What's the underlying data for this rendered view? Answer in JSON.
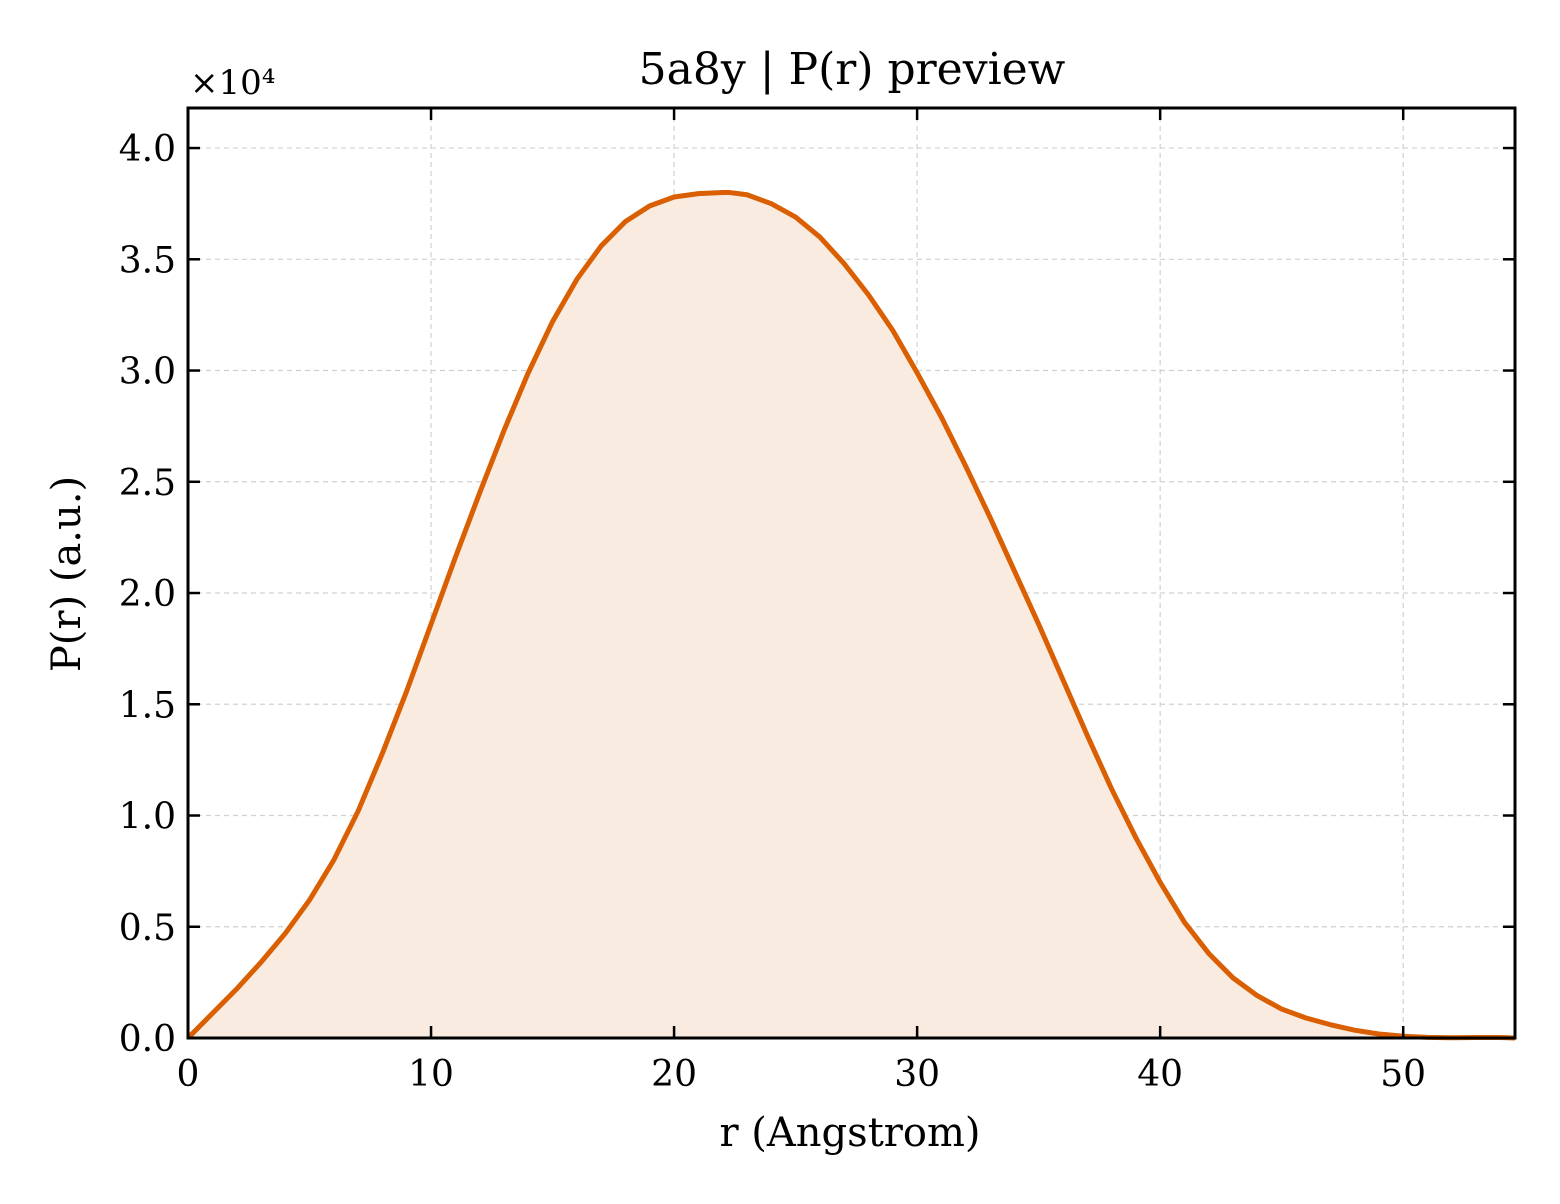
{
  "chart_data": {
    "type": "area",
    "title": "5a8y | P(r) preview",
    "xlabel": "r (Angstrom)",
    "ylabel": "P(r) (a.u.)",
    "y_multiplier_label": "×10⁴",
    "y_multiplier": 10000,
    "xlim": [
      0,
      54.6
    ],
    "ylim": [
      0,
      41800
    ],
    "xticks": [
      0,
      10,
      20,
      30,
      40,
      50
    ],
    "xtick_labels": [
      "0",
      "10",
      "20",
      "30",
      "40",
      "50"
    ],
    "yticks": [
      0,
      5000,
      10000,
      15000,
      20000,
      25000,
      30000,
      35000,
      40000
    ],
    "ytick_labels": [
      "0.0",
      "0.5",
      "1.0",
      "1.5",
      "2.0",
      "2.5",
      "3.0",
      "3.5",
      "4.0"
    ],
    "grid": true,
    "colors": {
      "line": "#d95f02",
      "fill": "#f9ebe0",
      "grid": "#d0d0d0",
      "axes": "#000000"
    },
    "series": [
      {
        "x": [
          0,
          1,
          2,
          3,
          4,
          5,
          6,
          7,
          8,
          9,
          10,
          11,
          12,
          13,
          14,
          15,
          16,
          17,
          18,
          19,
          20,
          21,
          22,
          22.3,
          23,
          24,
          25,
          26,
          27,
          28,
          29,
          30,
          31,
          32,
          33,
          34,
          35,
          36,
          37,
          38,
          39,
          40,
          41,
          42,
          43,
          44,
          45,
          46,
          47,
          48,
          49,
          50,
          51,
          52,
          53,
          54,
          54.6
        ],
        "y": [
          0,
          1100,
          2200,
          3400,
          4700,
          6200,
          8000,
          10200,
          12800,
          15600,
          18600,
          21600,
          24500,
          27300,
          29900,
          32200,
          34100,
          35600,
          36700,
          37400,
          37800,
          37950,
          38000,
          38000,
          37900,
          37500,
          36900,
          36000,
          34800,
          33400,
          31800,
          29900,
          27900,
          25700,
          23400,
          21000,
          18600,
          16100,
          13600,
          11200,
          9000,
          7000,
          5200,
          3800,
          2700,
          1900,
          1300,
          900,
          600,
          350,
          180,
          80,
          30,
          10,
          20,
          20,
          0
        ]
      }
    ]
  }
}
